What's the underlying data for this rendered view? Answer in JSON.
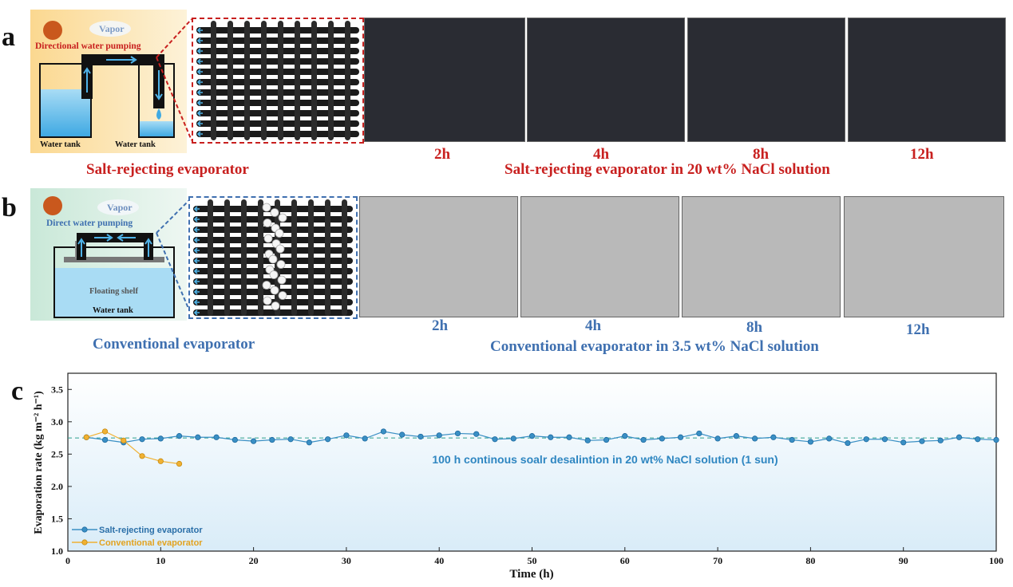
{
  "panels": {
    "a": {
      "letter": "a",
      "schematic": {
        "vapor": "Vapor",
        "pumping": "Directional water pumping",
        "tank_left": "Water tank",
        "tank_right": "Water tank"
      },
      "caption_left": "Salt-rejecting evaporator",
      "caption_right": "Salt-rejecting evaporator in 20 wt% NaCl solution",
      "times": [
        "2h",
        "4h",
        "8h",
        "12h"
      ]
    },
    "b": {
      "letter": "b",
      "schematic": {
        "vapor": "Vapor",
        "pumping": "Direct water pumping",
        "shelf": "Floating shelf",
        "tank": "Water tank"
      },
      "caption_left": "Conventional evaporator",
      "caption_right": "Conventional evaporator in 3.5 wt% NaCl solution",
      "times": [
        "2h",
        "4h",
        "8h",
        "12h"
      ]
    },
    "c": {
      "letter": "c"
    }
  },
  "colors": {
    "red": "#c8201f",
    "blue": "#3f70b0",
    "salt_series": "#3a8fc4",
    "conv_series": "#f0b132"
  },
  "chart_data": {
    "type": "line",
    "xlabel": "Time (h)",
    "ylabel": "Evaporation rate (kg m⁻² h⁻¹)",
    "xlim": [
      0,
      100
    ],
    "ylim": [
      1.0,
      3.75
    ],
    "xticks": [
      0,
      10,
      20,
      30,
      40,
      50,
      60,
      70,
      80,
      90,
      100
    ],
    "yticks": [
      1.0,
      1.5,
      2.0,
      2.5,
      3.0,
      3.5
    ],
    "reference_line": 2.75,
    "annotation": "100 h continous soalr desalintion in 20 wt% NaCl solution (1 sun)",
    "legend_position": "bottom-left",
    "series": [
      {
        "name": "Salt-rejecting evaporator",
        "color": "#3a8fc4",
        "x": [
          2,
          4,
          6,
          8,
          10,
          12,
          14,
          16,
          18,
          20,
          22,
          24,
          26,
          28,
          30,
          32,
          34,
          36,
          38,
          40,
          42,
          44,
          46,
          48,
          50,
          52,
          54,
          56,
          58,
          60,
          62,
          64,
          66,
          68,
          70,
          72,
          74,
          76,
          78,
          80,
          82,
          84,
          86,
          88,
          90,
          92,
          94,
          96,
          98,
          100
        ],
        "values": [
          2.76,
          2.72,
          2.68,
          2.73,
          2.74,
          2.78,
          2.76,
          2.76,
          2.72,
          2.7,
          2.72,
          2.73,
          2.68,
          2.73,
          2.79,
          2.74,
          2.85,
          2.8,
          2.77,
          2.79,
          2.82,
          2.81,
          2.73,
          2.74,
          2.78,
          2.76,
          2.76,
          2.71,
          2.72,
          2.78,
          2.72,
          2.74,
          2.76,
          2.82,
          2.74,
          2.78,
          2.74,
          2.76,
          2.72,
          2.69,
          2.74,
          2.67,
          2.73,
          2.73,
          2.68,
          2.7,
          2.71,
          2.76,
          2.73,
          2.72
        ]
      },
      {
        "name": "Conventional evaporator",
        "color": "#f0b132",
        "x": [
          2,
          4,
          6,
          8,
          10,
          12
        ],
        "values": [
          2.76,
          2.85,
          2.71,
          2.47,
          2.39,
          2.35
        ]
      }
    ]
  }
}
